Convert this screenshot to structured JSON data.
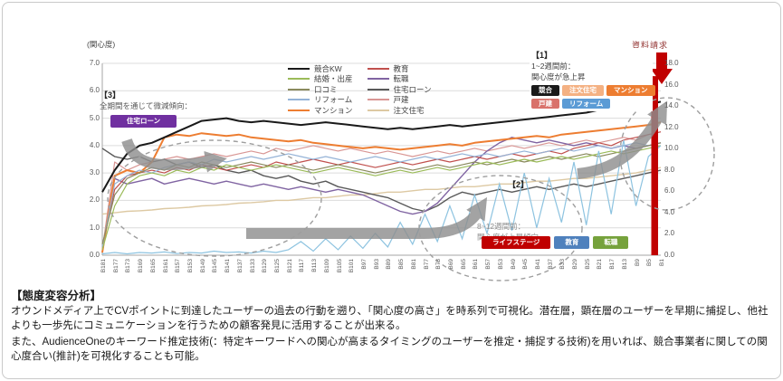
{
  "chart": {
    "y_axis_label": "(関心度)"
  },
  "chart_data": {
    "type": "line",
    "title": "",
    "xlabel": "",
    "ylabel_left": "(関心度)",
    "ylabel_right": "資料請求",
    "left_axis": {
      "min": 0,
      "max": 7,
      "step": 1,
      "grid": true
    },
    "right_axis": {
      "min": 0,
      "max": 18,
      "step": 2
    },
    "legend_position": "top-center, two columns",
    "x_labels": [
      "B181",
      "B177",
      "B173",
      "B169",
      "B165",
      "B161",
      "B157",
      "B153",
      "B149",
      "B145",
      "B141",
      "B137",
      "B133",
      "B129",
      "B125",
      "B121",
      "B117",
      "B113",
      "B109",
      "B105",
      "B101",
      "B97",
      "B93",
      "B89",
      "B85",
      "B81",
      "B77",
      "B73",
      "B69",
      "B65",
      "B61",
      "B57",
      "B53",
      "B49",
      "B45",
      "B41",
      "B37",
      "B33",
      "B29",
      "B25",
      "B21",
      "B17",
      "B13",
      "B9",
      "B5",
      "B1"
    ],
    "series": [
      {
        "name": "競合KW",
        "color": "#1a1a1a",
        "width": 2,
        "values": [
          2.3,
          3.1,
          3.7,
          4.0,
          4.1,
          4.3,
          4.5,
          4.7,
          4.9,
          4.95,
          5.0,
          4.9,
          4.85,
          4.9,
          4.85,
          4.8,
          4.75,
          4.8,
          4.85,
          4.8,
          4.75,
          4.7,
          4.65,
          4.6,
          4.65,
          4.6,
          4.65,
          4.7,
          4.75,
          4.7,
          4.75,
          4.8,
          4.85,
          4.9,
          4.95,
          5.0,
          5.05,
          5.1,
          5.15,
          5.2,
          5.3,
          5.35,
          5.4,
          5.45,
          5.5,
          5.6
        ]
      },
      {
        "name": "結婚・出産",
        "color": "#9BBB59",
        "width": 1.2,
        "values": [
          0.2,
          1.8,
          2.6,
          2.9,
          3.0,
          2.9,
          3.1,
          3.0,
          3.2,
          3.1,
          3.3,
          3.2,
          3.1,
          3.2,
          3.3,
          3.2,
          3.1,
          3.0,
          3.1,
          3.2,
          3.1,
          3.0,
          2.9,
          3.0,
          3.1,
          3.0,
          3.1,
          3.2,
          3.1,
          3.2,
          3.3,
          3.4,
          3.3,
          3.4,
          3.5,
          3.4,
          3.5,
          3.6,
          3.5,
          3.6,
          3.7,
          3.8,
          3.7,
          3.8,
          3.9,
          4.0
        ]
      },
      {
        "name": "口コミ",
        "color": "#8a8a5e",
        "width": 1.2,
        "values": [
          0.4,
          2.2,
          2.8,
          3.0,
          3.2,
          3.1,
          3.3,
          3.2,
          3.4,
          3.3,
          3.2,
          3.3,
          3.4,
          3.3,
          3.2,
          3.3,
          3.2,
          3.1,
          3.2,
          3.3,
          3.2,
          3.1,
          3.0,
          3.1,
          3.2,
          3.1,
          3.2,
          3.3,
          3.2,
          3.3,
          3.4,
          3.3,
          3.4,
          3.5,
          3.4,
          3.5,
          3.6,
          3.5,
          3.6,
          3.7,
          3.6,
          3.7,
          3.8,
          3.9,
          4.0,
          4.1
        ]
      },
      {
        "name": "リフォーム",
        "color": "#95B3D7",
        "width": 1.2,
        "values": [
          0.3,
          2.6,
          2.9,
          3.1,
          3.0,
          3.2,
          3.3,
          3.4,
          3.3,
          3.5,
          3.4,
          3.5,
          3.6,
          3.5,
          3.6,
          3.7,
          3.6,
          3.5,
          3.6,
          3.5,
          3.4,
          3.5,
          3.6,
          3.5,
          3.4,
          3.5,
          3.6,
          3.5,
          3.6,
          3.7,
          3.6,
          3.7,
          3.6,
          3.7,
          3.8,
          3.7,
          3.8,
          3.9,
          3.8,
          3.9,
          4.0,
          3.9,
          4.0,
          4.1,
          4.0,
          4.1
        ]
      },
      {
        "name": "マンション",
        "color": "#ED7D31",
        "width": 2,
        "values": [
          0.1,
          2.9,
          3.1,
          3.0,
          3.4,
          4.3,
          4.4,
          4.35,
          4.45,
          4.4,
          4.35,
          4.4,
          4.3,
          4.25,
          4.2,
          4.15,
          4.2,
          4.1,
          4.05,
          4.0,
          3.95,
          3.9,
          3.95,
          3.9,
          3.85,
          3.9,
          3.95,
          4.0,
          4.05,
          4.0,
          4.1,
          4.15,
          4.2,
          4.25,
          4.3,
          4.35,
          4.3,
          4.4,
          4.45,
          4.5,
          4.55,
          4.6,
          4.65,
          4.7,
          4.75,
          4.85
        ]
      },
      {
        "name": "教育",
        "color": "#C0504D",
        "width": 1.2,
        "values": [
          0.3,
          2.4,
          2.9,
          3.0,
          3.1,
          3.0,
          3.2,
          3.1,
          3.3,
          3.2,
          3.1,
          3.2,
          3.3,
          3.2,
          3.4,
          3.3,
          3.4,
          3.5,
          3.4,
          3.3,
          3.4,
          3.3,
          3.2,
          3.3,
          3.4,
          3.3,
          3.4,
          3.5,
          3.4,
          3.5,
          3.6,
          3.5,
          3.6,
          3.7,
          3.6,
          3.7,
          3.8,
          3.7,
          3.9,
          4.0,
          4.1,
          4.0,
          4.2,
          4.3,
          4.4,
          4.5
        ]
      },
      {
        "name": "転職",
        "color": "#8064A2",
        "width": 1.4,
        "values": [
          0.1,
          2.8,
          2.6,
          2.7,
          2.8,
          2.6,
          2.7,
          2.8,
          2.7,
          2.6,
          2.7,
          2.6,
          2.5,
          2.6,
          2.5,
          2.4,
          2.5,
          2.4,
          2.3,
          2.4,
          2.3,
          2.2,
          2.0,
          1.8,
          1.6,
          1.5,
          1.6,
          1.9,
          2.4,
          2.9,
          3.4,
          3.8,
          4.1,
          4.3,
          4.2,
          4.1,
          4.2,
          4.1,
          4.0,
          4.1,
          4.0,
          3.9,
          4.0,
          3.9,
          4.0,
          4.1
        ]
      },
      {
        "name": "住宅ローン",
        "color": "#595959",
        "width": 1.4,
        "values": [
          3.9,
          3.6,
          3.5,
          3.6,
          3.4,
          3.5,
          3.3,
          3.4,
          3.2,
          3.3,
          3.1,
          3.0,
          3.1,
          2.9,
          2.8,
          2.9,
          2.7,
          2.6,
          2.7,
          2.5,
          2.4,
          2.3,
          2.2,
          2.1,
          1.9,
          1.7,
          1.6,
          1.8,
          2.1,
          2.3,
          2.2,
          2.3,
          2.4,
          2.3,
          2.4,
          2.5,
          2.4,
          2.5,
          2.6,
          2.5,
          2.6,
          2.7,
          2.8,
          2.9,
          3.0,
          3.1
        ]
      },
      {
        "name": "戸建",
        "color": "#D99694",
        "width": 1.2,
        "values": [
          0.2,
          3.4,
          3.1,
          3.3,
          3.4,
          3.5,
          3.6,
          3.5,
          3.6,
          3.7,
          3.6,
          3.7,
          3.8,
          3.7,
          3.9,
          3.8,
          3.9,
          4.0,
          3.9,
          3.8,
          3.9,
          3.8,
          3.7,
          3.8,
          3.7,
          3.6,
          3.7,
          3.8,
          3.7,
          3.8,
          3.9,
          3.8,
          3.9,
          4.0,
          3.9,
          4.0,
          4.1,
          4.0,
          4.1,
          4.2,
          4.1,
          4.2,
          4.3,
          4.2,
          4.4,
          4.5
        ]
      },
      {
        "name": "注文住宅",
        "color": "#DDC9A3",
        "width": 1.4,
        "values": [
          1.5,
          1.55,
          1.6,
          1.62,
          1.65,
          1.7,
          1.72,
          1.75,
          1.8,
          1.82,
          1.85,
          1.9,
          1.92,
          1.95,
          2.0,
          2.0,
          2.05,
          2.1,
          2.1,
          2.15,
          2.2,
          2.2,
          2.25,
          2.3,
          2.3,
          2.35,
          2.4,
          2.4,
          2.45,
          2.5,
          2.5,
          2.55,
          2.6,
          2.6,
          2.65,
          2.7,
          2.7,
          2.75,
          2.8,
          2.8,
          2.85,
          2.9,
          2.95,
          3.0,
          3.1,
          3.2
        ]
      }
    ],
    "unlabeled_spiky_series": {
      "color": "#8DC3E0",
      "width": 1.2,
      "values": [
        0.05,
        0.1,
        0.05,
        0.1,
        0.08,
        0.12,
        0.06,
        0.1,
        0.08,
        0.15,
        0.1,
        0.12,
        0.08,
        0.15,
        0.1,
        0.2,
        0.5,
        0.15,
        0.6,
        0.2,
        0.7,
        0.25,
        0.8,
        0.3,
        1.2,
        0.4,
        1.5,
        0.5,
        1.8,
        0.6,
        2.2,
        0.8,
        2.6,
        0.9,
        3.0,
        1.0,
        2.8,
        1.2,
        3.4,
        1.1,
        3.8,
        1.5,
        4.2,
        1.8,
        3.6,
        4.0
      ]
    },
    "conversion_bar": {
      "x_label": "B1",
      "right_axis_value": 16.8,
      "color": "#C00000"
    }
  },
  "annotations": {
    "request_label": "資料請求",
    "a1": {
      "tag": "【1】",
      "line1": "1~2週間前：",
      "line2": "関心度が急上昇",
      "badges_row1": [
        {
          "label": "競合",
          "color": "#1a1a1a"
        },
        {
          "label": "注文住宅",
          "color": "#F4B183"
        },
        {
          "label": "マンション",
          "color": "#ED7D31"
        }
      ],
      "badges_row2": [
        {
          "label": "戸建",
          "color": "#D9726B"
        },
        {
          "label": "リフォーム",
          "color": "#5B9BD5"
        }
      ]
    },
    "a2": {
      "tag": "【2】",
      "line1": "8~12週間前：",
      "line2": "関心度が上昇傾向",
      "badges": [
        {
          "label": "ライフステージ",
          "color": "#C00000"
        },
        {
          "label": "教育",
          "color": "#4F81BD"
        },
        {
          "label": "転職",
          "color": "#76A23C"
        }
      ]
    },
    "a3": {
      "tag": "【3】",
      "line1": "全期間を通じて微減傾向：",
      "badge": {
        "label": "住宅ローン",
        "color": "#7030A0"
      }
    }
  },
  "analysis": {
    "heading": "【態度変容分析】",
    "p1": "オウンドメディア上でCVポイントに到達したユーザーの過去の行動を遡り、「関心度の高さ」を時系列で可視化。潜在層，顕在層のユーザーを早期に捕捉し、他社よりも一歩先にコミュニケーションを行うための顧客発見に活用することが出来る。",
    "p2": "また、AudienceOneのキーワード推定技術(：特定キーワードへの関心が高まるタイミングのユーザーを推定・捕捉する技術)を用いれば、競合事業者に関しての関心度合い(推計)を可視化することも可能。"
  }
}
